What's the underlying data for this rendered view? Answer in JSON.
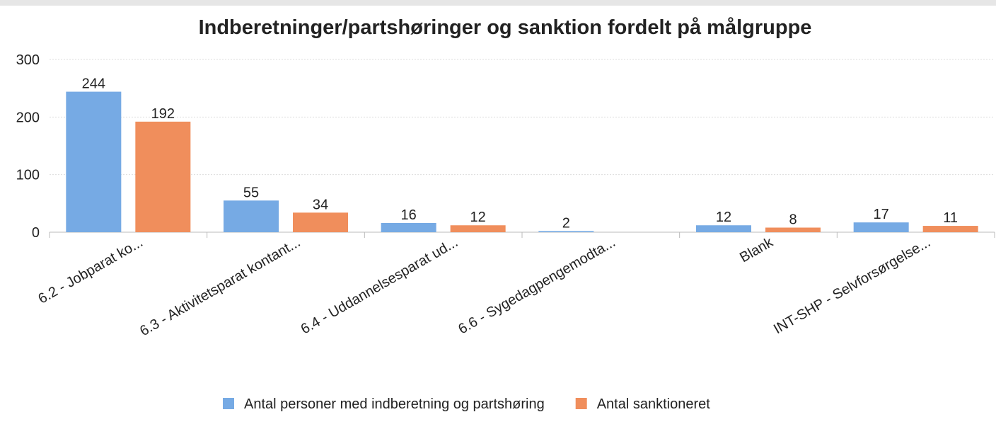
{
  "chart_data": {
    "type": "bar",
    "title": "Indberetninger/partshøringer og sanktion fordelt på målgruppe",
    "categories": [
      "6.2 - Jobparat ko...",
      "6.3 - Aktivitetsparat kontant...",
      "6.4 - Uddannelsesparat ud...",
      "6.6 - Sygedagpengemodta...",
      "Blank",
      "INT-SHP - Selvforsørgelse..."
    ],
    "series": [
      {
        "name": "Antal personer med indberetning og partshøring",
        "color": "#76aae4",
        "values": [
          244,
          55,
          16,
          2,
          12,
          17
        ]
      },
      {
        "name": "Antal sanktioneret",
        "color": "#f08e5c",
        "values": [
          192,
          34,
          12,
          null,
          8,
          11
        ]
      }
    ],
    "ylim": [
      0,
      300
    ],
    "yticks": [
      0,
      100,
      200,
      300
    ],
    "grid": true,
    "legend": "bottom"
  }
}
